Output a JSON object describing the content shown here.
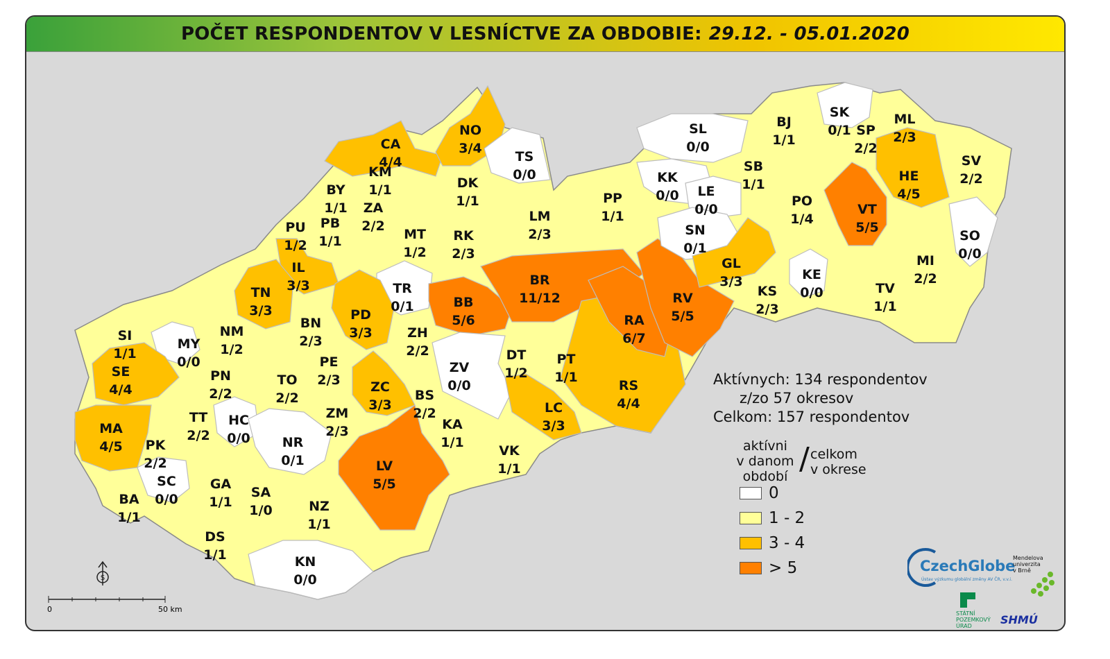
{
  "header": {
    "title": "POČET RESPONDENTOV V LESNÍCTVE ZA OBDOBIE:",
    "period": "29.12. - 05.01.2020"
  },
  "colors": {
    "zero": "#ffffff",
    "low": "#ffff99",
    "mid": "#ffc000",
    "high": "#ff8000",
    "border": "#bdbdbd"
  },
  "districts": [
    {
      "code": "CA",
      "count": "4/4",
      "level": "mid"
    },
    {
      "code": "NO",
      "count": "3/4",
      "level": "mid"
    },
    {
      "code": "TS",
      "count": "0/0",
      "level": "zero"
    },
    {
      "code": "KM",
      "count": "1/1",
      "level": "low"
    },
    {
      "code": "BY",
      "count": "1/1",
      "level": "low"
    },
    {
      "code": "ZA",
      "count": "2/2",
      "level": "low"
    },
    {
      "code": "DK",
      "count": "1/1",
      "level": "low"
    },
    {
      "code": "PU",
      "count": "1/2",
      "level": "low"
    },
    {
      "code": "PB",
      "count": "1/1",
      "level": "low"
    },
    {
      "code": "MT",
      "count": "1/2",
      "level": "low"
    },
    {
      "code": "RK",
      "count": "2/3",
      "level": "low"
    },
    {
      "code": "LM",
      "count": "2/3",
      "level": "low"
    },
    {
      "code": "PP",
      "count": "1/1",
      "level": "low"
    },
    {
      "code": "IL",
      "count": "3/3",
      "level": "mid"
    },
    {
      "code": "TN",
      "count": "3/3",
      "level": "mid"
    },
    {
      "code": "TR",
      "count": "0/1",
      "level": "zero"
    },
    {
      "code": "BB",
      "count": "5/6",
      "level": "high"
    },
    {
      "code": "BR",
      "count": "11/12",
      "level": "high"
    },
    {
      "code": "PD",
      "count": "3/3",
      "level": "mid"
    },
    {
      "code": "BN",
      "count": "2/3",
      "level": "low"
    },
    {
      "code": "NM",
      "count": "1/2",
      "level": "low"
    },
    {
      "code": "SI",
      "count": "1/1",
      "level": "low"
    },
    {
      "code": "MY",
      "count": "0/0",
      "level": "zero"
    },
    {
      "code": "SE",
      "count": "4/4",
      "level": "mid"
    },
    {
      "code": "ZH",
      "count": "2/2",
      "level": "low"
    },
    {
      "code": "PE",
      "count": "2/3",
      "level": "low"
    },
    {
      "code": "ZV",
      "count": "0/0",
      "level": "zero"
    },
    {
      "code": "DT",
      "count": "1/2",
      "level": "low"
    },
    {
      "code": "PT",
      "count": "1/1",
      "level": "low"
    },
    {
      "code": "PN",
      "count": "2/2",
      "level": "low"
    },
    {
      "code": "TO",
      "count": "2/2",
      "level": "low"
    },
    {
      "code": "ZC",
      "count": "3/3",
      "level": "mid"
    },
    {
      "code": "BS",
      "count": "2/2",
      "level": "low"
    },
    {
      "code": "MA",
      "count": "4/5",
      "level": "mid"
    },
    {
      "code": "TT",
      "count": "2/2",
      "level": "low"
    },
    {
      "code": "HC",
      "count": "0/0",
      "level": "zero"
    },
    {
      "code": "ZM",
      "count": "2/3",
      "level": "low"
    },
    {
      "code": "KA",
      "count": "1/1",
      "level": "low"
    },
    {
      "code": "LC",
      "count": "3/3",
      "level": "mid"
    },
    {
      "code": "RS",
      "count": "4/4",
      "level": "mid"
    },
    {
      "code": "RA",
      "count": "6/7",
      "level": "high"
    },
    {
      "code": "RV",
      "count": "5/5",
      "level": "high"
    },
    {
      "code": "PK",
      "count": "2/2",
      "level": "low"
    },
    {
      "code": "NR",
      "count": "0/1",
      "level": "zero"
    },
    {
      "code": "LV",
      "count": "5/5",
      "level": "high"
    },
    {
      "code": "VK",
      "count": "1/1",
      "level": "low"
    },
    {
      "code": "SC",
      "count": "0/0",
      "level": "zero"
    },
    {
      "code": "GA",
      "count": "1/1",
      "level": "low"
    },
    {
      "code": "SA",
      "count": "1/0",
      "level": "low"
    },
    {
      "code": "NZ",
      "count": "1/1",
      "level": "low"
    },
    {
      "code": "BA",
      "count": "1/1",
      "level": "low"
    },
    {
      "code": "DS",
      "count": "1/1",
      "level": "low"
    },
    {
      "code": "KN",
      "count": "0/0",
      "level": "zero"
    },
    {
      "code": "SL",
      "count": "0/0",
      "level": "zero"
    },
    {
      "code": "KK",
      "count": "0/0",
      "level": "zero"
    },
    {
      "code": "LE",
      "count": "0/0",
      "level": "zero"
    },
    {
      "code": "SN",
      "count": "0/1",
      "level": "zero"
    },
    {
      "code": "GL",
      "count": "3/3",
      "level": "mid"
    },
    {
      "code": "KS",
      "count": "2/3",
      "level": "low"
    },
    {
      "code": "KE",
      "count": "0/0",
      "level": "zero"
    },
    {
      "code": "BJ",
      "count": "1/1",
      "level": "low"
    },
    {
      "code": "SB",
      "count": "1/1",
      "level": "low"
    },
    {
      "code": "PO",
      "count": "1/4",
      "level": "low"
    },
    {
      "code": "SK",
      "count": "0/1",
      "level": "zero"
    },
    {
      "code": "SP",
      "count": "2/2",
      "level": "low"
    },
    {
      "code": "ML",
      "count": "2/3",
      "level": "low"
    },
    {
      "code": "HE",
      "count": "4/5",
      "level": "mid"
    },
    {
      "code": "SV",
      "count": "2/2",
      "level": "low"
    },
    {
      "code": "VT",
      "count": "5/5",
      "level": "high"
    },
    {
      "code": "SO",
      "count": "0/0",
      "level": "zero"
    },
    {
      "code": "MI",
      "count": "2/2",
      "level": "low"
    },
    {
      "code": "TV",
      "count": "1/1",
      "level": "low"
    }
  ],
  "stats": {
    "active": "Aktívnych: 134 respondentov",
    "districts": "z/zo 57 okresov",
    "total": "Celkom: 157 respondentov"
  },
  "legend": {
    "left_caption": [
      "aktívni",
      "v danom",
      "období"
    ],
    "slash": "/",
    "right_caption": [
      "celkom",
      "v okrese"
    ],
    "items": [
      {
        "label": "0",
        "level": "zero"
      },
      {
        "label": "1 - 2",
        "level": "low"
      },
      {
        "label": "3 - 4",
        "level": "mid"
      },
      {
        "label": "> 5",
        "level": "high"
      }
    ]
  },
  "scale": {
    "start": "0",
    "end": "50 km"
  },
  "logos": {
    "czechglobe": "CzechGlobe",
    "czechglobe_sub": "Ústav výzkumu globální změny AV ČR, v.v.i.",
    "mendel": [
      "Mendelova",
      "univerzita",
      "v Brně"
    ],
    "spu": [
      "STÁTNÍ",
      "POZEMKOVÝ",
      "ÚRAD"
    ],
    "shmu": "SHMÚ"
  }
}
